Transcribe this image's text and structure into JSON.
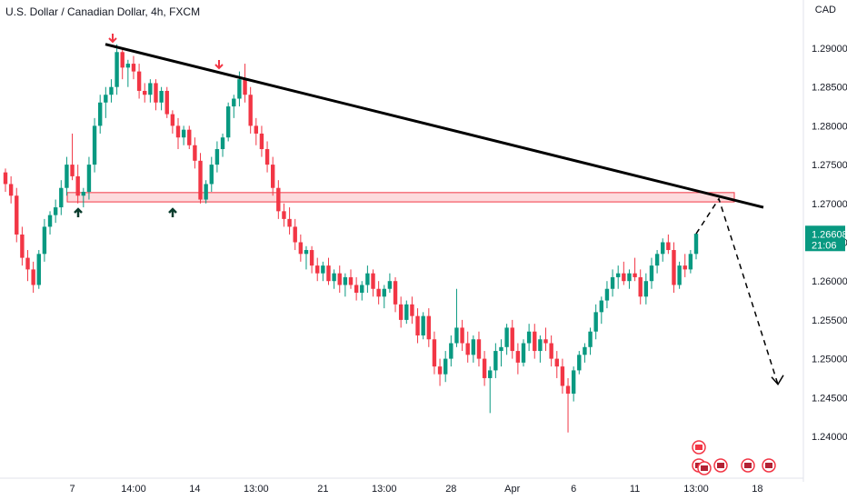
{
  "header": {
    "title": "U.S. Dollar / Canadian Dollar, 4h, FXCM",
    "currency": "CAD"
  },
  "chart_data": {
    "type": "candlestick",
    "y_ticks": [
      "1.29000",
      "1.28500",
      "1.28000",
      "1.27500",
      "1.27000",
      "1.26500",
      "1.26000",
      "1.25500",
      "1.25000",
      "1.24500",
      "1.24000"
    ],
    "y_range": [
      1.2372,
      1.2935
    ],
    "x_ticks": [
      "7",
      "14:00",
      "14",
      "13:00",
      "21",
      "13:00",
      "28",
      "Apr",
      "6",
      "11",
      "13:00",
      "18"
    ],
    "last_price": "1.26608",
    "countdown": "21:06",
    "colors": {
      "up": "#089981",
      "down": "#f23645",
      "line": "#000000",
      "zone": "#f23645"
    },
    "support_zone": [
      1.2702,
      1.2714
    ],
    "trendline": [
      {
        "x": "start",
        "y": 1.2905
      },
      {
        "x": "end",
        "y": 1.2695
      }
    ],
    "projection": [
      1.2661,
      1.2706,
      1.2467
    ],
    "candles": [
      [
        1.274,
        1.2745,
        1.2715,
        1.2725
      ],
      [
        1.2725,
        1.2735,
        1.27,
        1.271
      ],
      [
        1.271,
        1.272,
        1.265,
        1.266
      ],
      [
        1.266,
        1.267,
        1.262,
        1.263
      ],
      [
        1.263,
        1.264,
        1.26,
        1.2615
      ],
      [
        1.2615,
        1.2625,
        1.2585,
        1.2595
      ],
      [
        1.2595,
        1.264,
        1.259,
        1.2635
      ],
      [
        1.2635,
        1.268,
        1.2625,
        1.267
      ],
      [
        1.267,
        1.269,
        1.266,
        1.2685
      ],
      [
        1.2685,
        1.2705,
        1.2675,
        1.2695
      ],
      [
        1.2695,
        1.273,
        1.2685,
        1.272
      ],
      [
        1.272,
        1.276,
        1.271,
        1.275
      ],
      [
        1.275,
        1.279,
        1.273,
        1.2735
      ],
      [
        1.2735,
        1.275,
        1.27,
        1.271
      ],
      [
        1.271,
        1.272,
        1.2695,
        1.2715
      ],
      [
        1.2715,
        1.276,
        1.2705,
        1.275
      ],
      [
        1.275,
        1.281,
        1.274,
        1.28
      ],
      [
        1.28,
        1.284,
        1.279,
        1.283
      ],
      [
        1.283,
        1.285,
        1.281,
        1.284
      ],
      [
        1.284,
        1.286,
        1.283,
        1.285
      ],
      [
        1.285,
        1.2905,
        1.284,
        1.2895
      ],
      [
        1.2895,
        1.29,
        1.286,
        1.2875
      ],
      [
        1.2875,
        1.2885,
        1.285,
        1.288
      ],
      [
        1.288,
        1.289,
        1.286,
        1.287
      ],
      [
        1.287,
        1.288,
        1.2835,
        1.2845
      ],
      [
        1.2845,
        1.2855,
        1.283,
        1.284
      ],
      [
        1.284,
        1.286,
        1.283,
        1.2855
      ],
      [
        1.2855,
        1.286,
        1.282,
        1.283
      ],
      [
        1.283,
        1.285,
        1.282,
        1.2845
      ],
      [
        1.2845,
        1.285,
        1.281,
        1.2815
      ],
      [
        1.2815,
        1.282,
        1.279,
        1.28
      ],
      [
        1.28,
        1.281,
        1.277,
        1.2785
      ],
      [
        1.2785,
        1.28,
        1.2775,
        1.2795
      ],
      [
        1.2795,
        1.28,
        1.277,
        1.2775
      ],
      [
        1.2775,
        1.2785,
        1.2745,
        1.2755
      ],
      [
        1.2755,
        1.2765,
        1.27,
        1.2705
      ],
      [
        1.2705,
        1.273,
        1.27,
        1.2725
      ],
      [
        1.2725,
        1.276,
        1.2715,
        1.275
      ],
      [
        1.275,
        1.278,
        1.274,
        1.277
      ],
      [
        1.277,
        1.279,
        1.276,
        1.2785
      ],
      [
        1.2785,
        1.283,
        1.278,
        1.2825
      ],
      [
        1.2825,
        1.284,
        1.281,
        1.2835
      ],
      [
        1.2835,
        1.287,
        1.2825,
        1.286
      ],
      [
        1.286,
        1.288,
        1.283,
        1.284
      ],
      [
        1.284,
        1.285,
        1.279,
        1.28
      ],
      [
        1.28,
        1.281,
        1.2775,
        1.279
      ],
      [
        1.279,
        1.28,
        1.276,
        1.277
      ],
      [
        1.277,
        1.278,
        1.274,
        1.275
      ],
      [
        1.275,
        1.276,
        1.271,
        1.272
      ],
      [
        1.272,
        1.273,
        1.268,
        1.269
      ],
      [
        1.269,
        1.27,
        1.267,
        1.268
      ],
      [
        1.268,
        1.2695,
        1.266,
        1.267
      ],
      [
        1.267,
        1.268,
        1.264,
        1.265
      ],
      [
        1.265,
        1.266,
        1.2625,
        1.2635
      ],
      [
        1.2635,
        1.2645,
        1.2615,
        1.264
      ],
      [
        1.264,
        1.2645,
        1.261,
        1.262
      ],
      [
        1.262,
        1.263,
        1.26,
        1.261
      ],
      [
        1.261,
        1.2625,
        1.26,
        1.262
      ],
      [
        1.262,
        1.263,
        1.2595,
        1.26
      ],
      [
        1.26,
        1.2615,
        1.259,
        1.261
      ],
      [
        1.261,
        1.262,
        1.2585,
        1.2595
      ],
      [
        1.2595,
        1.261,
        1.258,
        1.2605
      ],
      [
        1.2605,
        1.2615,
        1.259,
        1.2595
      ],
      [
        1.2595,
        1.2605,
        1.2575,
        1.2585
      ],
      [
        1.2585,
        1.26,
        1.2575,
        1.2595
      ],
      [
        1.2595,
        1.262,
        1.2585,
        1.261
      ],
      [
        1.261,
        1.2615,
        1.258,
        1.259
      ],
      [
        1.259,
        1.26,
        1.257,
        1.258
      ],
      [
        1.258,
        1.2595,
        1.2565,
        1.259
      ],
      [
        1.259,
        1.261,
        1.2585,
        1.26
      ],
      [
        1.26,
        1.2605,
        1.256,
        1.257
      ],
      [
        1.257,
        1.258,
        1.254,
        1.255
      ],
      [
        1.255,
        1.2575,
        1.2545,
        1.257
      ],
      [
        1.257,
        1.258,
        1.2545,
        1.2555
      ],
      [
        1.2555,
        1.2565,
        1.252,
        1.253
      ],
      [
        1.253,
        1.256,
        1.2525,
        1.2555
      ],
      [
        1.2555,
        1.2565,
        1.2515,
        1.2525
      ],
      [
        1.2525,
        1.2535,
        1.248,
        1.249
      ],
      [
        1.249,
        1.25,
        1.2465,
        1.248
      ],
      [
        1.248,
        1.251,
        1.247,
        1.25
      ],
      [
        1.25,
        1.253,
        1.249,
        1.252
      ],
      [
        1.252,
        1.259,
        1.2515,
        1.254
      ],
      [
        1.254,
        1.255,
        1.251,
        1.252
      ],
      [
        1.252,
        1.2535,
        1.2495,
        1.2505
      ],
      [
        1.2505,
        1.253,
        1.2495,
        1.2525
      ],
      [
        1.2525,
        1.2535,
        1.249,
        1.25
      ],
      [
        1.25,
        1.251,
        1.2465,
        1.2475
      ],
      [
        1.2475,
        1.249,
        1.243,
        1.2485
      ],
      [
        1.2485,
        1.252,
        1.2475,
        1.251
      ],
      [
        1.251,
        1.2525,
        1.249,
        1.2515
      ],
      [
        1.2515,
        1.2545,
        1.2505,
        1.254
      ],
      [
        1.254,
        1.255,
        1.25,
        1.251
      ],
      [
        1.251,
        1.252,
        1.248,
        1.2495
      ],
      [
        1.2495,
        1.2525,
        1.249,
        1.252
      ],
      [
        1.252,
        1.2545,
        1.251,
        1.2535
      ],
      [
        1.2535,
        1.2545,
        1.25,
        1.251
      ],
      [
        1.251,
        1.253,
        1.2495,
        1.2525
      ],
      [
        1.2525,
        1.254,
        1.251,
        1.252
      ],
      [
        1.252,
        1.253,
        1.249,
        1.25
      ],
      [
        1.25,
        1.251,
        1.2475,
        1.249
      ],
      [
        1.249,
        1.25,
        1.2455,
        1.2465
      ],
      [
        1.2465,
        1.2475,
        1.2405,
        1.2455
      ],
      [
        1.2455,
        1.249,
        1.2445,
        1.2485
      ],
      [
        1.2485,
        1.251,
        1.248,
        1.2505
      ],
      [
        1.2505,
        1.252,
        1.2495,
        1.2515
      ],
      [
        1.2515,
        1.254,
        1.2505,
        1.2535
      ],
      [
        1.2535,
        1.257,
        1.2525,
        1.256
      ],
      [
        1.256,
        1.258,
        1.2545,
        1.2575
      ],
      [
        1.2575,
        1.26,
        1.2565,
        1.259
      ],
      [
        1.259,
        1.2615,
        1.258,
        1.2605
      ],
      [
        1.2605,
        1.262,
        1.259,
        1.261
      ],
      [
        1.261,
        1.2625,
        1.2595,
        1.26
      ],
      [
        1.26,
        1.2615,
        1.259,
        1.261
      ],
      [
        1.261,
        1.263,
        1.26,
        1.2605
      ],
      [
        1.2605,
        1.2615,
        1.257,
        1.258
      ],
      [
        1.258,
        1.261,
        1.257,
        1.26
      ],
      [
        1.26,
        1.263,
        1.259,
        1.262
      ],
      [
        1.262,
        1.264,
        1.261,
        1.2635
      ],
      [
        1.2635,
        1.2655,
        1.2625,
        1.265
      ],
      [
        1.265,
        1.266,
        1.2635,
        1.264
      ],
      [
        1.264,
        1.265,
        1.2585,
        1.2595
      ],
      [
        1.2595,
        1.2625,
        1.259,
        1.262
      ],
      [
        1.262,
        1.2635,
        1.2605,
        1.2615
      ],
      [
        1.2615,
        1.264,
        1.261,
        1.2635
      ],
      [
        1.2635,
        1.2662,
        1.2628,
        1.2661
      ]
    ],
    "event_markers": {
      "flags": 5,
      "top_flag_index": 0
    }
  }
}
